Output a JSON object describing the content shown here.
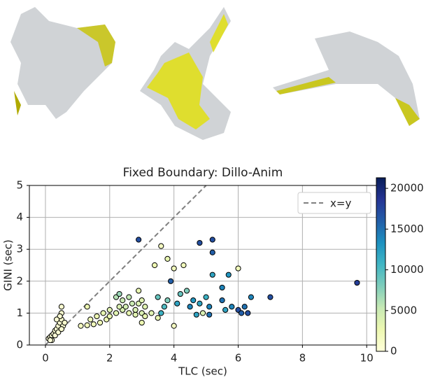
{
  "chart_data": {
    "type": "scatter",
    "title": "Fixed Boundary: Dillo-Anim",
    "x_label": "TLC (sec)",
    "y_label": "GINI (sec)",
    "xlim": [
      -0.5,
      10.3
    ],
    "ylim": [
      0,
      5
    ],
    "xticks": [
      0,
      2,
      4,
      6,
      8,
      10
    ],
    "yticks": [
      0,
      1,
      2,
      3,
      4,
      5
    ],
    "grid": true,
    "reference_line": {
      "name": "x=y",
      "color": "#808080"
    },
    "legend": "upper right",
    "colorbar": {
      "lim": [
        0,
        21300
      ],
      "ticks": [
        0,
        5000,
        10000,
        15000,
        20000
      ],
      "colormap": [
        "#ffffd9",
        "#edf8b1",
        "#c7e9b4",
        "#7fcdbb",
        "#41b6c4",
        "#1d91c0",
        "#225ea8",
        "#253494",
        "#081d58"
      ]
    },
    "x": [
      0.1,
      0.15,
      0.2,
      0.25,
      0.3,
      0.35,
      0.4,
      0.45,
      0.5,
      0.5,
      0.5,
      0.45,
      0.3,
      0.2,
      0.4,
      0.55,
      0.6,
      0.35,
      0.15,
      0.5,
      1.1,
      1.3,
      1.5,
      1.7,
      1.9,
      2.0,
      2.2,
      2.4,
      2.6,
      2.8,
      3.0,
      1.4,
      1.6,
      1.8,
      2.0,
      2.2,
      2.3,
      2.4,
      2.5,
      2.7,
      2.9,
      3.0,
      3.1,
      2.3,
      2.6,
      2.8,
      1.3,
      2.9,
      3.0,
      3.1,
      3.5,
      3.6,
      3.7,
      3.8,
      3.9,
      4.0,
      4.1,
      4.2,
      4.3,
      4.4,
      4.5,
      4.6,
      4.8,
      4.9,
      5.0,
      5.1,
      5.2,
      5.2,
      4.8,
      3.4,
      3.6,
      3.8,
      4.0,
      3.3,
      3.5,
      5.5,
      5.6,
      5.8,
      6.0,
      6.1,
      6.2,
      6.3,
      6.4,
      6.0,
      5.5,
      5.7,
      5.2,
      7.0,
      9.7,
      2.9,
      5.1,
      4.7
    ],
    "y": [
      0.2,
      0.25,
      0.3,
      0.35,
      0.45,
      0.5,
      0.6,
      0.7,
      0.8,
      1.0,
      1.2,
      0.9,
      0.3,
      0.15,
      0.4,
      0.6,
      0.7,
      0.8,
      0.15,
      0.5,
      0.6,
      0.62,
      0.65,
      0.7,
      0.8,
      0.9,
      1.0,
      1.1,
      1.0,
      0.95,
      1.0,
      0.8,
      0.9,
      1.0,
      1.1,
      1.5,
      1.6,
      1.4,
      1.2,
      1.3,
      1.3,
      1.4,
      0.9,
      1.2,
      1.5,
      1.1,
      1.2,
      1.7,
      0.7,
      1.2,
      1.5,
      1.0,
      1.2,
      1.4,
      2.0,
      2.4,
      1.3,
      1.6,
      2.5,
      1.7,
      1.2,
      1.4,
      1.3,
      1.0,
      1.5,
      1.2,
      3.3,
      2.9,
      3.2,
      2.5,
      3.1,
      2.7,
      0.6,
      1.0,
      0.85,
      1.4,
      1.1,
      1.2,
      1.1,
      1.0,
      1.2,
      1.0,
      1.5,
      2.4,
      1.8,
      2.2,
      2.2,
      1.5,
      1.95,
      3.3,
      0.95,
      0.95
    ],
    "c": [
      200,
      300,
      400,
      300,
      500,
      400,
      600,
      500,
      700,
      800,
      600,
      500,
      300,
      200,
      400,
      700,
      800,
      500,
      200,
      600,
      1500,
      1800,
      2000,
      2200,
      2500,
      3000,
      3500,
      4000,
      3000,
      3500,
      4000,
      2000,
      2500,
      3000,
      3500,
      6000,
      7000,
      5000,
      4500,
      5000,
      4000,
      3500,
      3000,
      4000,
      5500,
      4000,
      2500,
      3000,
      2500,
      3500,
      9000,
      11000,
      10000,
      8000,
      16000,
      2000,
      12000,
      9000,
      2000,
      8000,
      14000,
      13000,
      12000,
      4000,
      11000,
      14000,
      17000,
      16000,
      17000,
      2500,
      1500,
      3000,
      1500,
      3500,
      3000,
      15000,
      12000,
      14000,
      17000,
      16000,
      15000,
      17000,
      14000,
      2000,
      14000,
      13000,
      12000,
      17000,
      18000,
      17000,
      15000,
      12000
    ]
  }
}
